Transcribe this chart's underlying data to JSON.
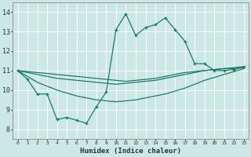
{
  "xlabel": "Humidex (Indice chaleur)",
  "background_color": "#cce8e4",
  "grid_color": "#ffffff",
  "line_color": "#1a7a6e",
  "xlim": [
    -0.5,
    23.5
  ],
  "ylim": [
    7.5,
    14.5
  ],
  "yticks": [
    8,
    9,
    10,
    11,
    12,
    13,
    14
  ],
  "xticks": [
    0,
    1,
    2,
    3,
    4,
    5,
    6,
    7,
    8,
    9,
    10,
    11,
    12,
    13,
    14,
    15,
    16,
    17,
    18,
    19,
    20,
    21,
    22,
    23
  ],
  "line1_x": [
    0,
    1,
    2,
    3,
    4,
    5,
    6,
    7,
    8,
    9,
    10,
    11,
    12,
    13,
    14,
    15,
    16,
    17,
    18,
    19,
    20,
    21,
    22,
    23
  ],
  "line1_y": [
    11.0,
    10.55,
    9.8,
    9.8,
    8.5,
    8.6,
    8.45,
    8.3,
    9.15,
    9.9,
    13.1,
    13.9,
    12.8,
    13.2,
    13.35,
    13.7,
    13.1,
    12.5,
    11.35,
    11.35,
    11.0,
    11.0,
    11.05,
    11.2
  ],
  "line2_x": [
    0,
    1,
    2,
    3,
    4,
    5,
    6,
    7,
    8,
    9,
    10,
    11,
    12,
    13,
    14,
    15,
    16,
    17,
    18,
    19,
    20,
    21,
    22,
    23
  ],
  "line2_y": [
    11.0,
    10.95,
    10.9,
    10.85,
    10.8,
    10.75,
    10.7,
    10.65,
    10.6,
    10.55,
    10.5,
    10.45,
    10.5,
    10.55,
    10.6,
    10.7,
    10.8,
    10.9,
    10.95,
    11.0,
    11.05,
    11.1,
    11.1,
    11.15
  ],
  "line3_x": [
    0,
    1,
    2,
    3,
    4,
    5,
    6,
    7,
    8,
    9,
    10,
    11,
    12,
    13,
    14,
    15,
    16,
    17,
    18,
    19,
    20,
    21,
    22,
    23
  ],
  "line3_y": [
    11.0,
    10.9,
    10.8,
    10.7,
    10.6,
    10.55,
    10.5,
    10.45,
    10.4,
    10.35,
    10.3,
    10.35,
    10.4,
    10.45,
    10.5,
    10.6,
    10.7,
    10.8,
    10.9,
    11.0,
    11.05,
    11.1,
    11.15,
    11.2
  ],
  "line4_x": [
    0,
    1,
    2,
    3,
    4,
    5,
    6,
    7,
    8,
    9,
    10,
    11,
    12,
    13,
    14,
    15,
    16,
    17,
    18,
    19,
    20,
    21,
    22,
    23
  ],
  "line4_y": [
    11.0,
    10.7,
    10.4,
    10.2,
    10.0,
    9.85,
    9.7,
    9.6,
    9.5,
    9.45,
    9.4,
    9.45,
    9.5,
    9.6,
    9.7,
    9.8,
    9.95,
    10.1,
    10.3,
    10.5,
    10.65,
    10.8,
    10.95,
    11.1
  ]
}
